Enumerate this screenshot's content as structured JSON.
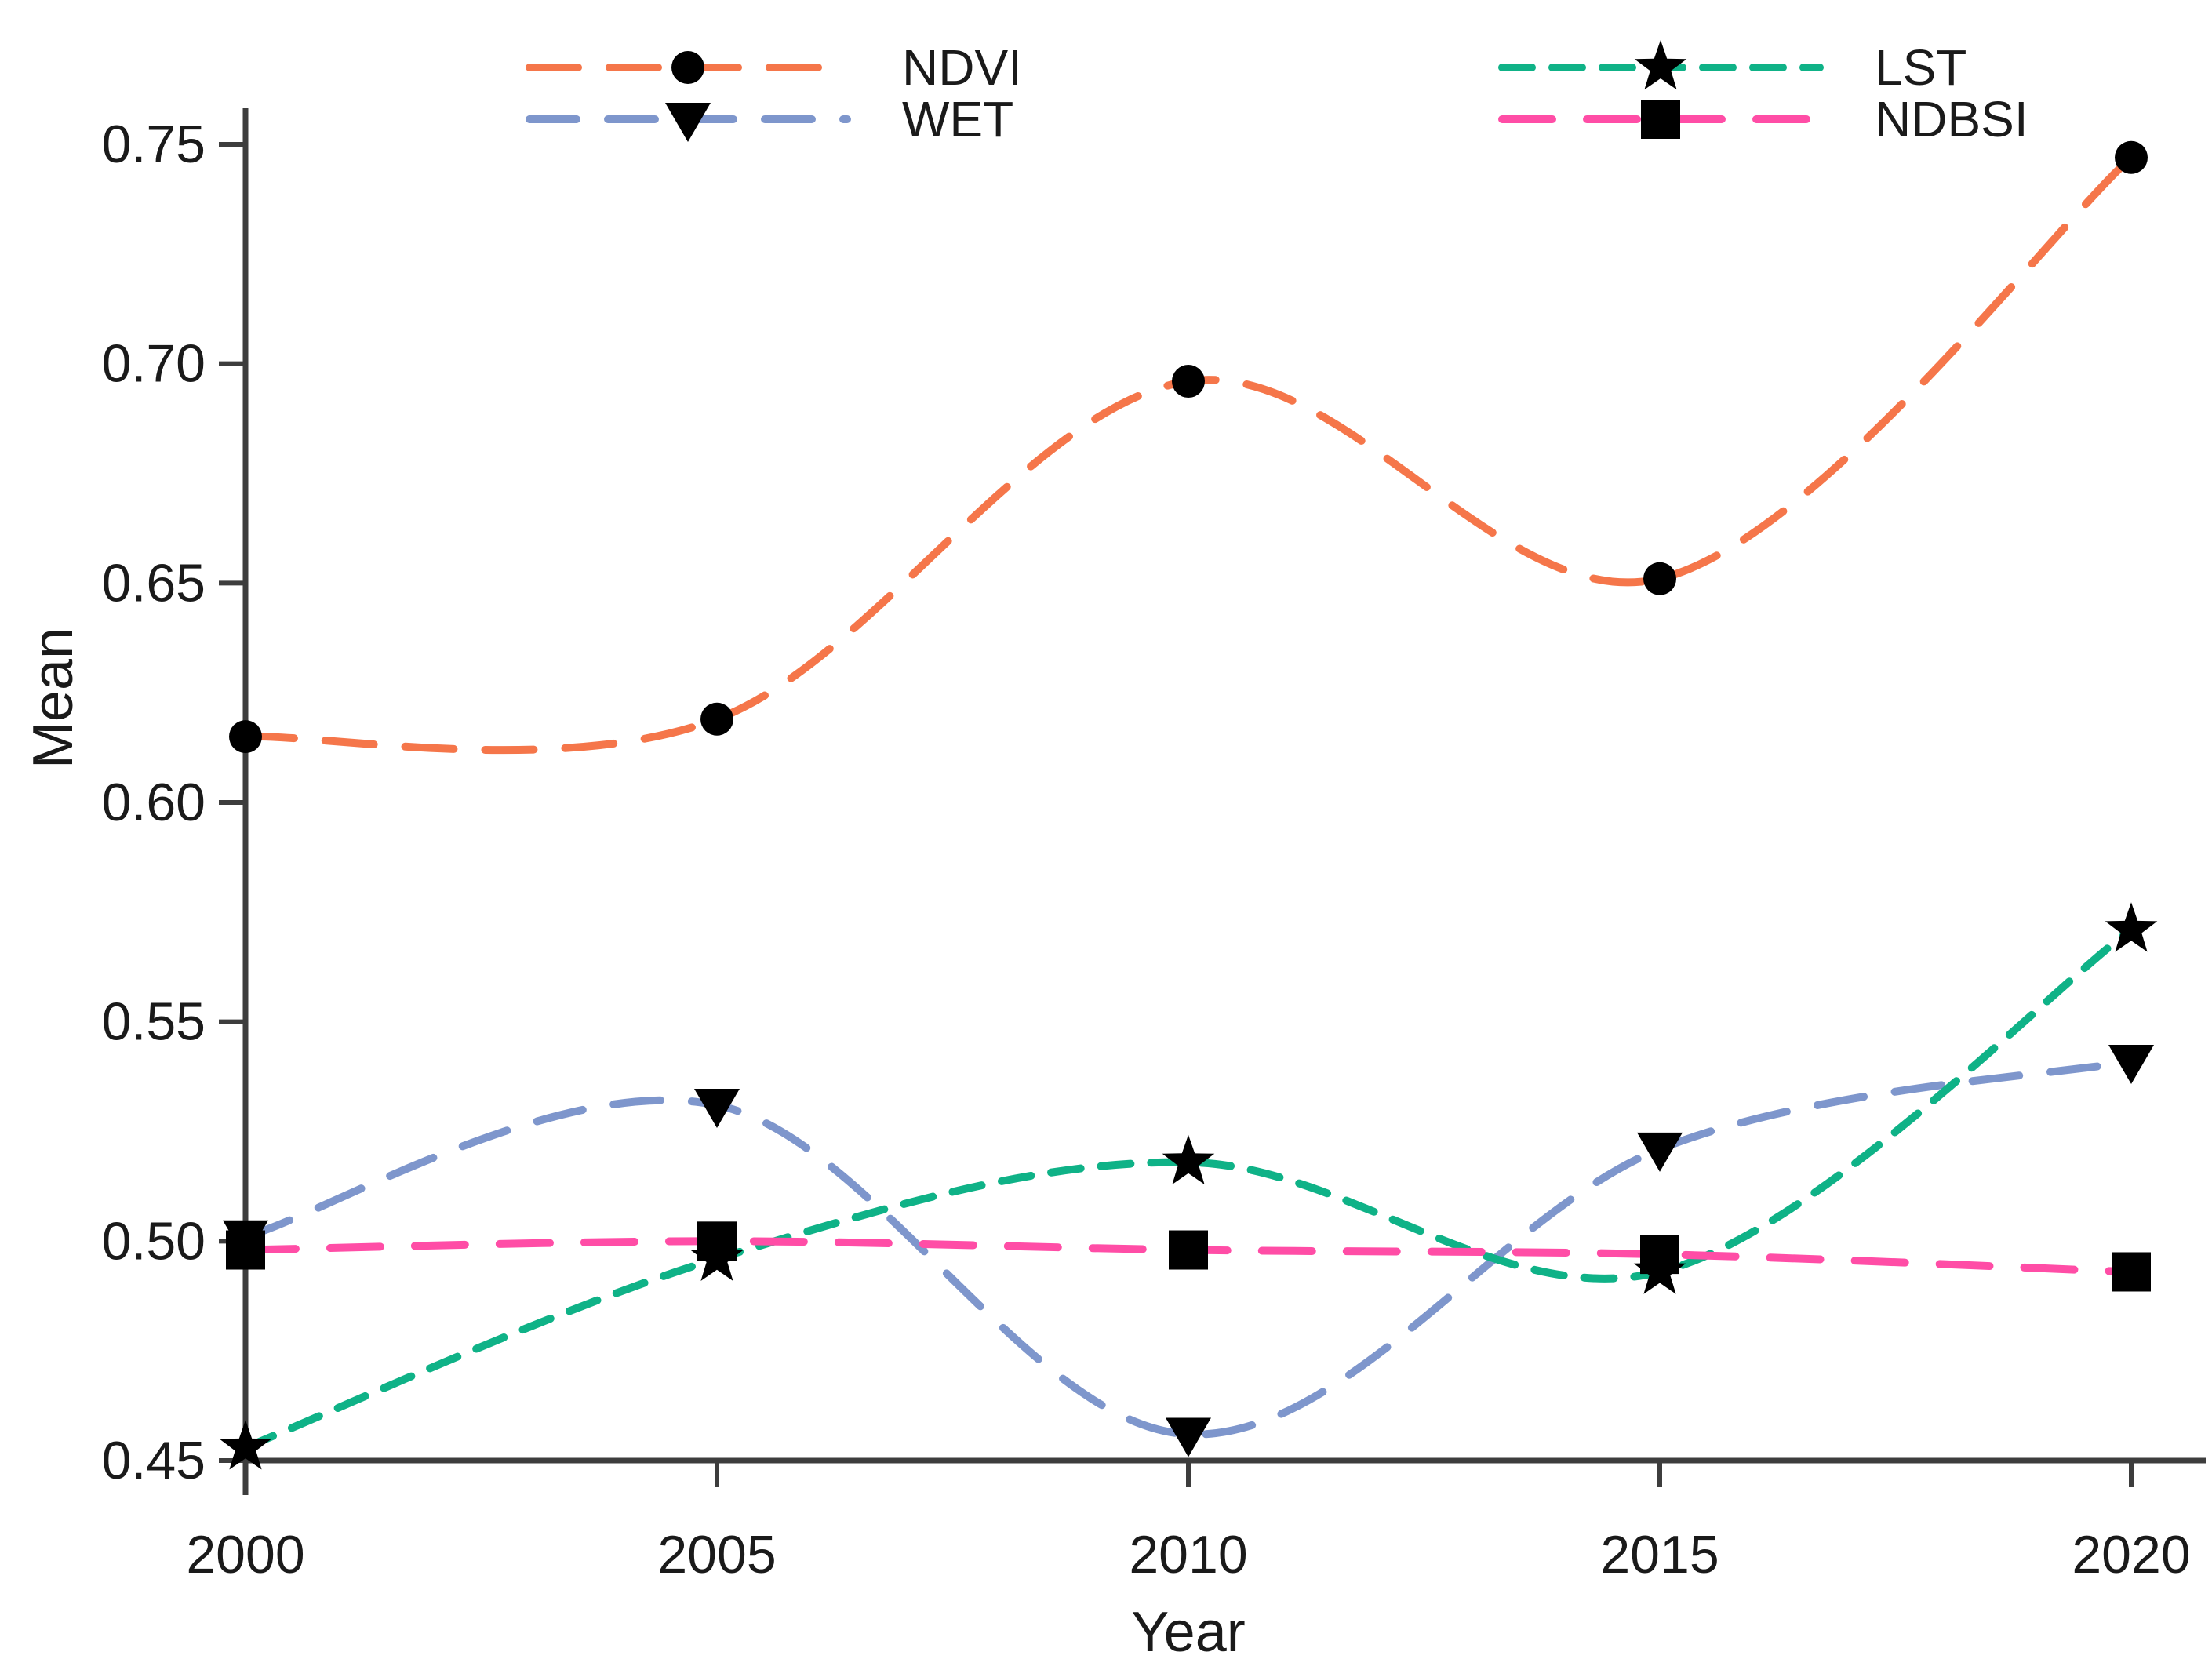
{
  "chart_data": {
    "type": "line",
    "title": "",
    "xlabel": "Year",
    "ylabel": "Mean",
    "x": [
      2000,
      2005,
      2010,
      2015,
      2020
    ],
    "xticklabels": [
      "2000",
      "2005",
      "2010",
      "2015",
      "2020"
    ],
    "yticklabels": [
      "0.75",
      "0.70",
      "0.65",
      "0.60",
      "0.55",
      "0.50",
      "0.45"
    ],
    "xlim": [
      2000,
      2020
    ],
    "ylim": [
      0.45,
      0.75
    ],
    "grid": false,
    "legend_position": "top",
    "background": "#ffffff",
    "axis_color": "#3d3d3d",
    "text_color": "#1a1a1a",
    "marker_color": "#000000",
    "series": [
      {
        "name": "NDVI",
        "marker": "circle",
        "color": "#F5764A",
        "dash": [
          62,
          40
        ],
        "values": [
          0.615,
          0.619,
          0.696,
          0.651,
          0.747
        ]
      },
      {
        "name": "WET",
        "marker": "triangle-down",
        "color": "#7E96CC",
        "dash": [
          60,
          40
        ],
        "values": [
          0.501,
          0.531,
          0.456,
          0.521,
          0.541
        ]
      },
      {
        "name": "LST",
        "marker": "star",
        "color": "#0FB287",
        "dash": [
          38,
          26
        ],
        "values": [
          0.453,
          0.496,
          0.518,
          0.493,
          0.571
        ]
      },
      {
        "name": "NDBSI",
        "marker": "square",
        "color": "#FF4DA6",
        "dash": [
          64,
          44
        ],
        "values": [
          0.498,
          0.5,
          0.498,
          0.497,
          0.493
        ]
      }
    ]
  }
}
